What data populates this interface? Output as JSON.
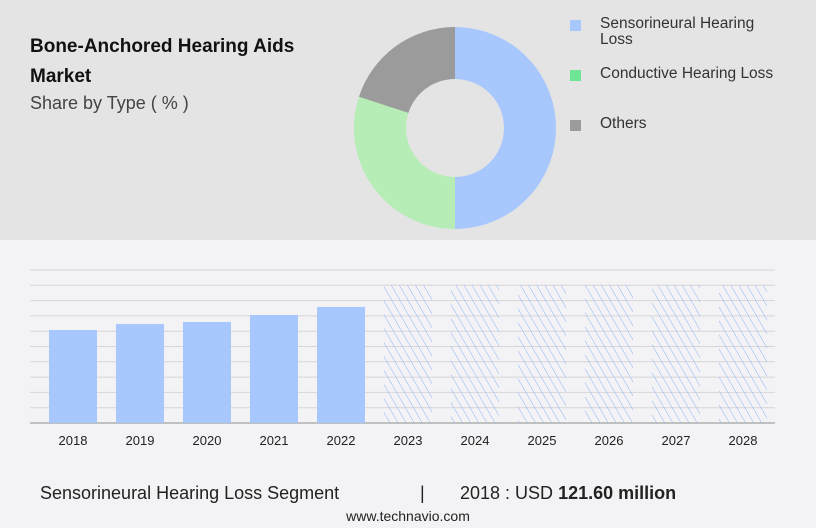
{
  "title": "Bone-Anchored Hearing Aids Market",
  "subtitle": "Share by Type ( % )",
  "colors": {
    "sensorineural": "#a8c8fd",
    "conductive": "#b6edb6",
    "conductive_legend": "#6fe596",
    "others": "#9b9b9b"
  },
  "chart_data": [
    {
      "type": "pie",
      "donut": true,
      "legend": [
        "Sensorineural Hearing Loss",
        "Conductive Hearing Loss",
        "Others"
      ],
      "legend_placement": "right",
      "values": [
        50,
        30,
        20
      ]
    },
    {
      "type": "bar",
      "categories": [
        "2018",
        "2019",
        "2020",
        "2021",
        "2022",
        "2023",
        "2024",
        "2025",
        "2026",
        "2027",
        "2028"
      ],
      "values": [
        121.6,
        129.4,
        132.1,
        141.2,
        151.7,
        null,
        null,
        null,
        null,
        null,
        null
      ],
      "forecast_from": "2023",
      "grid": true,
      "unit": "USD million"
    }
  ],
  "footer": {
    "segment": "Sensorineural Hearing Loss Segment",
    "sep": "|",
    "year_label": "2018 : USD",
    "value": "121.60 million"
  },
  "site": "www.technavio.com"
}
